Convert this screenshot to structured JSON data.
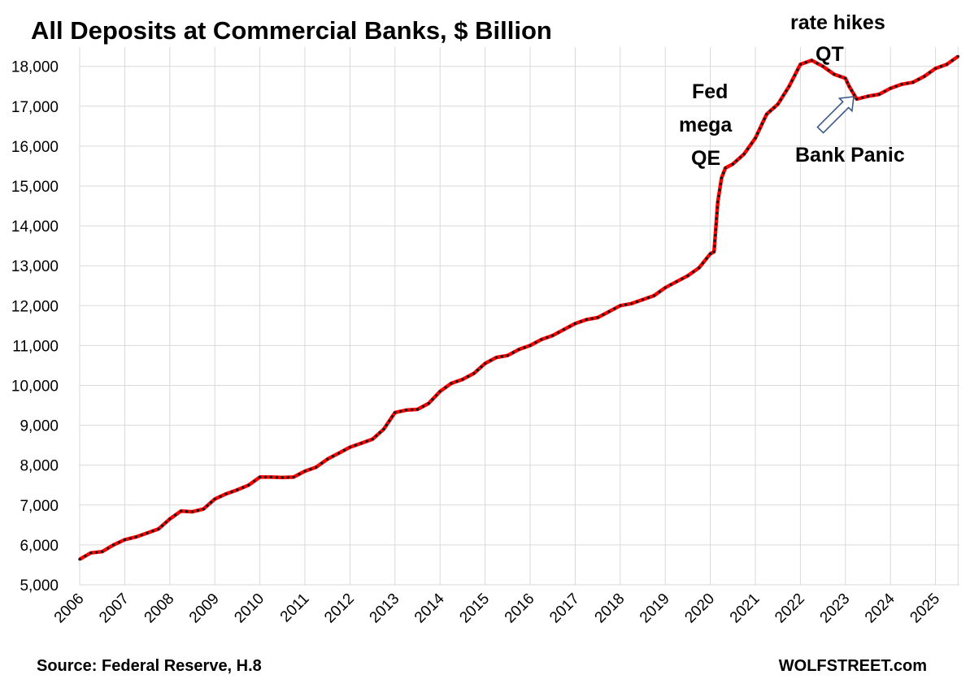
{
  "chart_data": {
    "type": "line",
    "title": "All Deposits at Commercial Banks, $ Billion",
    "source": "Source: Federal Reserve, H.8",
    "watermark": "WOLFSTREET.com",
    "xlabel": "",
    "ylabel": "",
    "ylim": [
      5000,
      18500
    ],
    "xlim": [
      "2006-01",
      "2025-07"
    ],
    "yticks": [
      5000,
      6000,
      7000,
      8000,
      9000,
      10000,
      11000,
      12000,
      13000,
      14000,
      15000,
      16000,
      17000,
      18000
    ],
    "ytick_labels": [
      "5,000",
      "6,000",
      "7,000",
      "8,000",
      "9,000",
      "10,000",
      "11,000",
      "12,000",
      "13,000",
      "14,000",
      "15,000",
      "16,000",
      "17,000",
      "18,000"
    ],
    "xtick_labels": [
      "2006",
      "2007",
      "2008",
      "2009",
      "2010",
      "2011",
      "2012",
      "2013",
      "2014",
      "2015",
      "2016",
      "2017",
      "2018",
      "2019",
      "2020",
      "2021",
      "2022",
      "2023",
      "2024",
      "2025"
    ],
    "grid": true,
    "line_color": "#ff0000",
    "marker_color": "#1a1a1a",
    "annotations": [
      {
        "text": "rate hikes",
        "key": "rate-hikes"
      },
      {
        "text": "QT",
        "key": "qt"
      },
      {
        "text": "Fed",
        "key": "fed"
      },
      {
        "text": "mega",
        "key": "mega"
      },
      {
        "text": "QE",
        "key": "qe"
      },
      {
        "text": "Bank Panic",
        "key": "bank-panic"
      }
    ],
    "series": [
      {
        "values": [
          [
            "2006-01",
            5640
          ],
          [
            "2006-04",
            5800
          ],
          [
            "2006-07",
            5830
          ],
          [
            "2006-10",
            6000
          ],
          [
            "2007-01",
            6130
          ],
          [
            "2007-04",
            6200
          ],
          [
            "2007-07",
            6300
          ],
          [
            "2007-10",
            6400
          ],
          [
            "2008-01",
            6650
          ],
          [
            "2008-04",
            6850
          ],
          [
            "2008-07",
            6830
          ],
          [
            "2008-10",
            6900
          ],
          [
            "2009-01",
            7150
          ],
          [
            "2009-04",
            7280
          ],
          [
            "2009-07",
            7380
          ],
          [
            "2009-10",
            7500
          ],
          [
            "2010-01",
            7700
          ],
          [
            "2010-04",
            7700
          ],
          [
            "2010-07",
            7690
          ],
          [
            "2010-10",
            7700
          ],
          [
            "2011-01",
            7850
          ],
          [
            "2011-04",
            7950
          ],
          [
            "2011-07",
            8150
          ],
          [
            "2011-10",
            8300
          ],
          [
            "2012-01",
            8450
          ],
          [
            "2012-04",
            8550
          ],
          [
            "2012-07",
            8650
          ],
          [
            "2012-10",
            8900
          ],
          [
            "2013-01",
            9320
          ],
          [
            "2013-04",
            9380
          ],
          [
            "2013-07",
            9400
          ],
          [
            "2013-10",
            9550
          ],
          [
            "2014-01",
            9850
          ],
          [
            "2014-04",
            10050
          ],
          [
            "2014-07",
            10150
          ],
          [
            "2014-10",
            10300
          ],
          [
            "2015-01",
            10550
          ],
          [
            "2015-04",
            10700
          ],
          [
            "2015-07",
            10750
          ],
          [
            "2015-10",
            10900
          ],
          [
            "2016-01",
            11000
          ],
          [
            "2016-04",
            11150
          ],
          [
            "2016-07",
            11250
          ],
          [
            "2016-10",
            11400
          ],
          [
            "2017-01",
            11550
          ],
          [
            "2017-04",
            11650
          ],
          [
            "2017-07",
            11700
          ],
          [
            "2017-10",
            11850
          ],
          [
            "2018-01",
            12000
          ],
          [
            "2018-04",
            12050
          ],
          [
            "2018-07",
            12150
          ],
          [
            "2018-10",
            12250
          ],
          [
            "2019-01",
            12450
          ],
          [
            "2019-04",
            12600
          ],
          [
            "2019-07",
            12750
          ],
          [
            "2019-10",
            12950
          ],
          [
            "2020-01",
            13300
          ],
          [
            "2020-02",
            13350
          ],
          [
            "2020-03",
            14600
          ],
          [
            "2020-04",
            15200
          ],
          [
            "2020-05",
            15450
          ],
          [
            "2020-07",
            15550
          ],
          [
            "2020-10",
            15800
          ],
          [
            "2021-01",
            16200
          ],
          [
            "2021-04",
            16800
          ],
          [
            "2021-07",
            17050
          ],
          [
            "2021-10",
            17500
          ],
          [
            "2022-01",
            18050
          ],
          [
            "2022-04",
            18150
          ],
          [
            "2022-07",
            18000
          ],
          [
            "2022-10",
            17800
          ],
          [
            "2023-01",
            17700
          ],
          [
            "2023-02",
            17500
          ],
          [
            "2023-04",
            17180
          ],
          [
            "2023-07",
            17250
          ],
          [
            "2023-10",
            17300
          ],
          [
            "2024-01",
            17450
          ],
          [
            "2024-04",
            17550
          ],
          [
            "2024-07",
            17600
          ],
          [
            "2024-10",
            17750
          ],
          [
            "2025-01",
            17950
          ],
          [
            "2025-04",
            18050
          ],
          [
            "2025-07",
            18250
          ]
        ]
      }
    ]
  }
}
